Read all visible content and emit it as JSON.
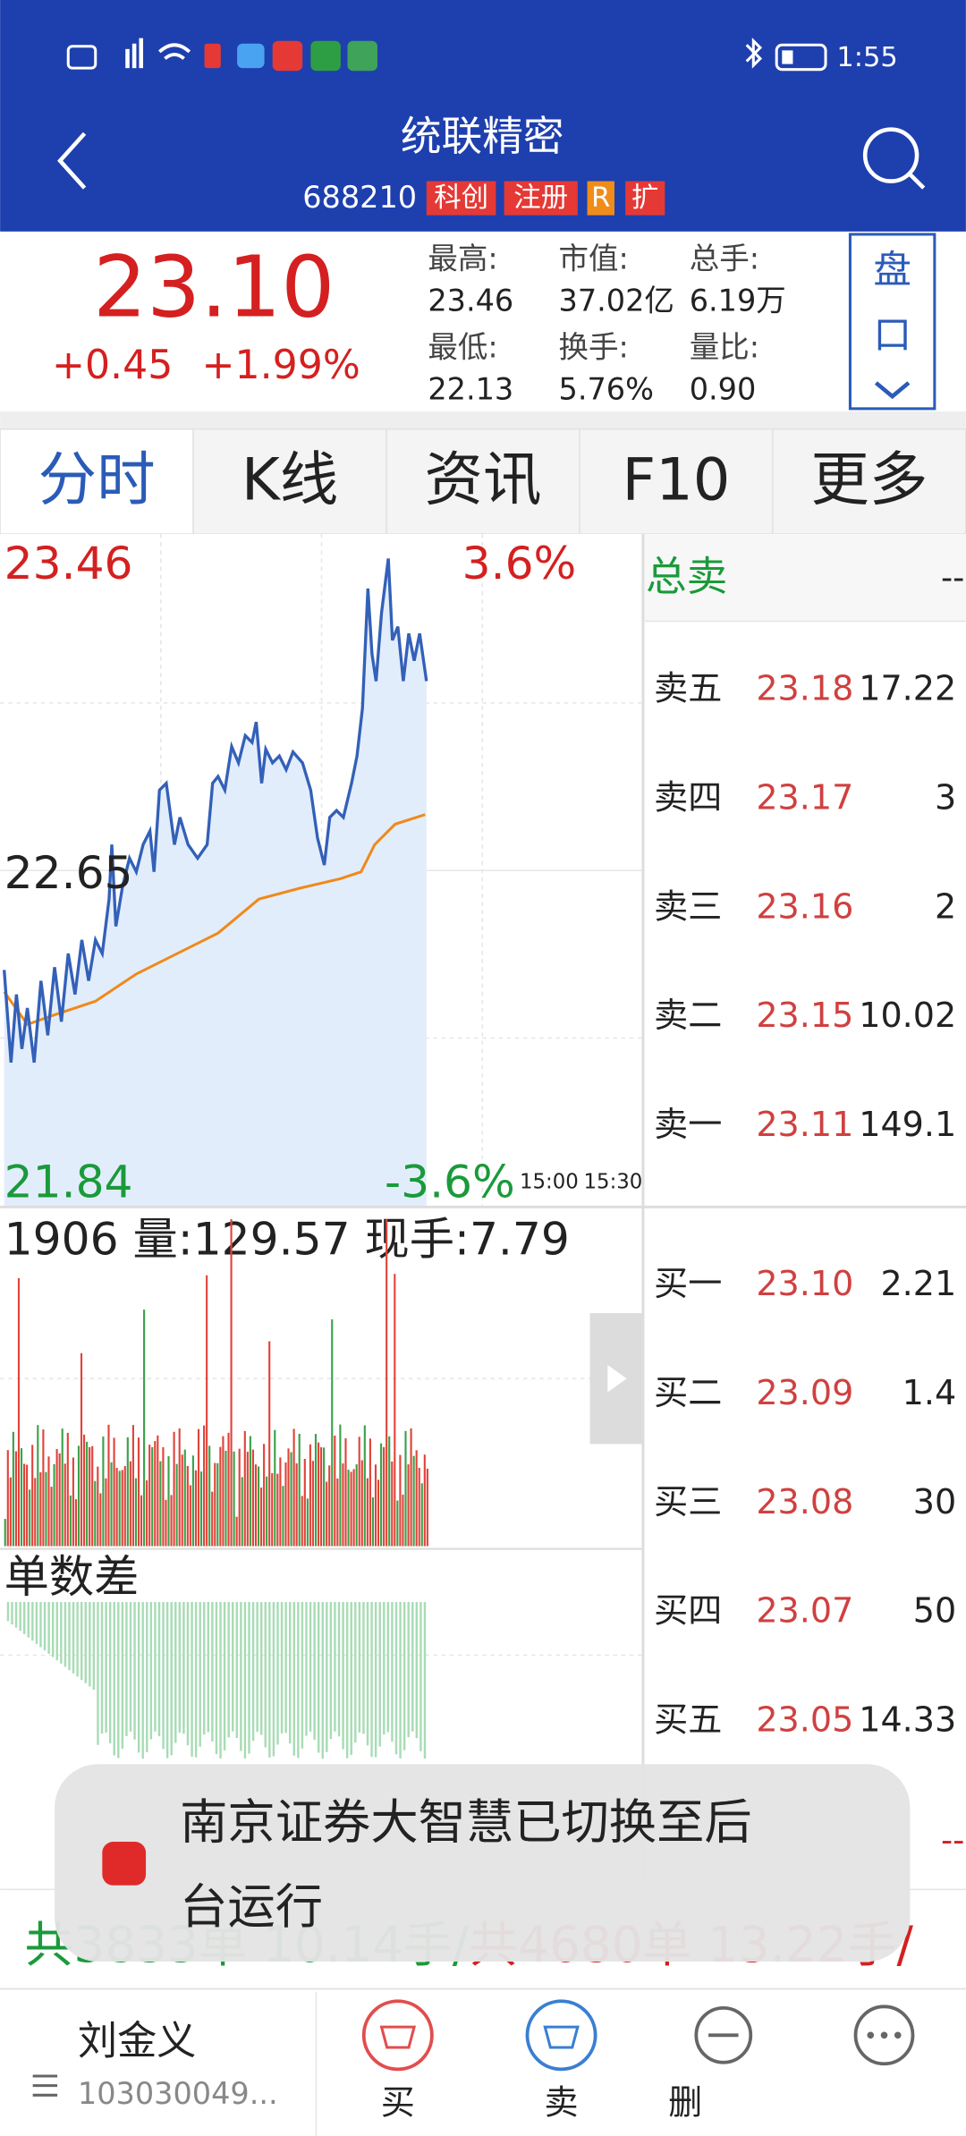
{
  "status_bar": {
    "time": "1:55"
  },
  "header": {
    "title": "统联精密",
    "code": "688210",
    "tags": [
      "科创",
      "注册",
      "R",
      "扩"
    ]
  },
  "quote": {
    "price": "23.10",
    "change": "+0.45",
    "change_pct": "+1.99%",
    "stats": [
      {
        "label": "最高:",
        "value": "23.46"
      },
      {
        "label": "市值:",
        "value": "37.02亿"
      },
      {
        "label": "总手:",
        "value": "6.19万"
      },
      {
        "label": "最低:",
        "value": "22.13"
      },
      {
        "label": "换手:",
        "value": "5.76%"
      },
      {
        "label": "量比:",
        "value": "0.90"
      }
    ],
    "button": [
      "盘",
      "口"
    ]
  },
  "tabs": [
    "分时",
    "K线",
    "资讯",
    "F10",
    "更多"
  ],
  "chart": {
    "price_high": "23.46",
    "pct_high": "3.6%",
    "price_mid": "22.65",
    "price_low": "21.84",
    "pct_low": "-3.6%",
    "times": [
      "15:00",
      "15:30"
    ],
    "volume_label": "1906 量:129.57 现手:7.79",
    "indicator_label": "单数差"
  },
  "order_book": {
    "sell_total_label": "总卖",
    "sell_total": "--",
    "sell": [
      {
        "label": "卖五",
        "price": "23.18",
        "volume": "17.22"
      },
      {
        "label": "卖四",
        "price": "23.17",
        "volume": "3"
      },
      {
        "label": "卖三",
        "price": "23.16",
        "volume": "2"
      },
      {
        "label": "卖二",
        "price": "23.15",
        "volume": "10.02"
      },
      {
        "label": "卖一",
        "price": "23.11",
        "volume": "149.1"
      }
    ],
    "buy": [
      {
        "label": "买一",
        "price": "23.10",
        "volume": "2.21"
      },
      {
        "label": "买二",
        "price": "23.09",
        "volume": "1.4"
      },
      {
        "label": "买三",
        "price": "23.08",
        "volume": "30"
      },
      {
        "label": "买四",
        "price": "23.07",
        "volume": "50"
      },
      {
        "label": "买五",
        "price": "23.05",
        "volume": "14.33"
      }
    ],
    "buy_total": "--"
  },
  "summary": {
    "buy": "共3833单 10.14手/",
    "sell": "共4680单 13.22手/"
  },
  "toast": {
    "lines": [
      "南京证券大智慧已切换至后",
      "台运行"
    ]
  },
  "bottom_nav": {
    "account_name": "刘金义",
    "account_id": "103030049...",
    "actions": [
      "买",
      "卖",
      "删"
    ]
  }
}
